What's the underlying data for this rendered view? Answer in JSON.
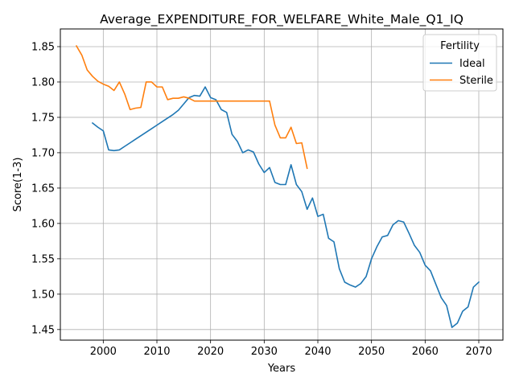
{
  "chart_data": {
    "type": "line",
    "title": "Average_EXPENDITURE_FOR_WELFARE_White_Male_Q1_IQ",
    "xlabel": "Years",
    "ylabel": "Score(1-3)",
    "xlim": [
      1992,
      2074.5
    ],
    "ylim": [
      1.435,
      1.875
    ],
    "xticks": [
      2000,
      2010,
      2020,
      2030,
      2040,
      2050,
      2060,
      2070
    ],
    "yticks": [
      1.45,
      1.5,
      1.55,
      1.6,
      1.65,
      1.7,
      1.75,
      1.8,
      1.85
    ],
    "grid": true,
    "legend": {
      "title": "Fertility",
      "placement": "top-right"
    },
    "series": [
      {
        "name": "Ideal",
        "color": "#1f77b4",
        "x": [
          1998,
          1999,
          2000,
          2001,
          2002,
          2003,
          2004,
          2005,
          2006,
          2007,
          2008,
          2009,
          2010,
          2011,
          2012,
          2013,
          2014,
          2015,
          2016,
          2017,
          2018,
          2019,
          2020,
          2021,
          2022,
          2023,
          2024,
          2025,
          2026,
          2027,
          2028,
          2029,
          2030,
          2031,
          2032,
          2033,
          2034,
          2035,
          2036,
          2037,
          2038,
          2039,
          2040,
          2041,
          2042,
          2043,
          2044,
          2045,
          2046,
          2047,
          2048,
          2049,
          2050,
          2051,
          2052,
          2053,
          2054,
          2055,
          2056,
          2057,
          2058,
          2059,
          2060,
          2061,
          2062,
          2063,
          2064,
          2065,
          2066,
          2067,
          2068,
          2069,
          2070
        ],
        "values": [
          1.742,
          1.736,
          1.731,
          1.704,
          1.703,
          1.704,
          1.709,
          1.714,
          1.719,
          1.724,
          1.729,
          1.734,
          1.739,
          1.744,
          1.749,
          1.754,
          1.76,
          1.769,
          1.778,
          1.781,
          1.78,
          1.793,
          1.778,
          1.775,
          1.761,
          1.757,
          1.726,
          1.716,
          1.7,
          1.704,
          1.701,
          1.684,
          1.672,
          1.679,
          1.658,
          1.655,
          1.655,
          1.683,
          1.655,
          1.645,
          1.62,
          1.636,
          1.61,
          1.613,
          1.579,
          1.574,
          1.536,
          1.517,
          1.513,
          1.51,
          1.515,
          1.525,
          1.55,
          1.567,
          1.581,
          1.583,
          1.598,
          1.604,
          1.602,
          1.586,
          1.569,
          1.559,
          1.541,
          1.533,
          1.514,
          1.495,
          1.484,
          1.453,
          1.459,
          1.476,
          1.482,
          1.51,
          1.517
        ]
      },
      {
        "name": "Sterile",
        "color": "#ff7f0e",
        "x": [
          1995,
          1996,
          1997,
          1998,
          1999,
          2000,
          2001,
          2002,
          2003,
          2004,
          2005,
          2006,
          2007,
          2008,
          2009,
          2010,
          2011,
          2012,
          2013,
          2014,
          2015,
          2016,
          2017,
          2018,
          2019,
          2020,
          2021,
          2022,
          2023,
          2024,
          2025,
          2026,
          2027,
          2028,
          2029,
          2030,
          2031,
          2032,
          2033,
          2034,
          2035,
          2036,
          2037,
          2038
        ],
        "values": [
          1.851,
          1.838,
          1.817,
          1.808,
          1.801,
          1.797,
          1.794,
          1.788,
          1.8,
          1.783,
          1.761,
          1.763,
          1.764,
          1.8,
          1.8,
          1.793,
          1.793,
          1.775,
          1.777,
          1.777,
          1.779,
          1.777,
          1.773,
          1.773,
          1.773,
          1.773,
          1.773,
          1.773,
          1.773,
          1.773,
          1.773,
          1.773,
          1.773,
          1.773,
          1.773,
          1.773,
          1.773,
          1.739,
          1.721,
          1.721,
          1.736,
          1.713,
          1.714,
          1.678
        ]
      }
    ]
  }
}
